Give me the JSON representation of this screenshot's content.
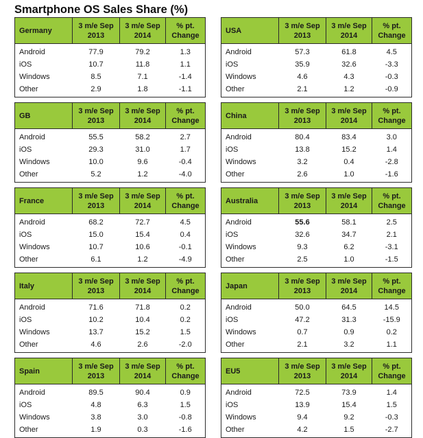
{
  "title": "Smartphone OS Sales Share (%)",
  "headers": {
    "col1": [
      "3 m/e Sep",
      "2013"
    ],
    "col2": [
      "3 m/e Sep",
      "2014"
    ],
    "col3": [
      "% pt.",
      "Change"
    ]
  },
  "tables": [
    {
      "region": "Germany",
      "rows": [
        [
          "Android",
          "77.9",
          "79.2",
          "1.3"
        ],
        [
          "iOS",
          "10.7",
          "11.8",
          "1.1"
        ],
        [
          "Windows",
          "8.5",
          "7.1",
          "-1.4"
        ],
        [
          "Other",
          "2.9",
          "1.8",
          "-1.1"
        ]
      ]
    },
    {
      "region": "USA",
      "rows": [
        [
          "Android",
          "57.3",
          "61.8",
          "4.5"
        ],
        [
          "iOS",
          "35.9",
          "32.6",
          "-3.3"
        ],
        [
          "Windows",
          "4.6",
          "4.3",
          "-0.3"
        ],
        [
          "Other",
          "2.1",
          "1.2",
          "-0.9"
        ]
      ]
    },
    {
      "region": "GB",
      "rows": [
        [
          "Android",
          "55.5",
          "58.2",
          "2.7"
        ],
        [
          "iOS",
          "29.3",
          "31.0",
          "1.7"
        ],
        [
          "Windows",
          "10.0",
          "9.6",
          "-0.4"
        ],
        [
          "Other",
          "5.2",
          "1.2",
          "-4.0"
        ]
      ]
    },
    {
      "region": "China",
      "rows": [
        [
          "Android",
          "80.4",
          "83.4",
          "3.0"
        ],
        [
          "iOS",
          "13.8",
          "15.2",
          "1.4"
        ],
        [
          "Windows",
          "3.2",
          "0.4",
          "-2.8"
        ],
        [
          "Other",
          "2.6",
          "1.0",
          "-1.6"
        ]
      ]
    },
    {
      "region": "France",
      "rows": [
        [
          "Android",
          "68.2",
          "72.7",
          "4.5"
        ],
        [
          "iOS",
          "15.0",
          "15.4",
          "0.4"
        ],
        [
          "Windows",
          "10.7",
          "10.6",
          "-0.1"
        ],
        [
          "Other",
          "6.1",
          "1.2",
          "-4.9"
        ]
      ]
    },
    {
      "region": "Australia",
      "rows": [
        [
          "Android",
          "55.6",
          "58.1",
          "2.5"
        ],
        [
          "iOS",
          "32.6",
          "34.7",
          "2.1"
        ],
        [
          "Windows",
          "9.3",
          "6.2",
          "-3.1"
        ],
        [
          "Other",
          "2.5",
          "1.0",
          "-1.5"
        ]
      ]
    },
    {
      "region": "Italy",
      "rows": [
        [
          "Android",
          "71.6",
          "71.8",
          "0.2"
        ],
        [
          "iOS",
          "10.2",
          "10.4",
          "0.2"
        ],
        [
          "Windows",
          "13.7",
          "15.2",
          "1.5"
        ],
        [
          "Other",
          "4.6",
          "2.6",
          "-2.0"
        ]
      ]
    },
    {
      "region": "Japan",
      "rows": [
        [
          "Android",
          "50.0",
          "64.5",
          "14.5"
        ],
        [
          "iOS",
          "47.2",
          "31.3",
          "-15.9"
        ],
        [
          "Windows",
          "0.7",
          "0.9",
          "0.2"
        ],
        [
          "Other",
          "2.1",
          "3.2",
          "1.1"
        ]
      ]
    },
    {
      "region": "Spain",
      "rows": [
        [
          "Android",
          "89.5",
          "90.4",
          "0.9"
        ],
        [
          "iOS",
          "4.8",
          "6.3",
          "1.5"
        ],
        [
          "Windows",
          "3.8",
          "3.0",
          "-0.8"
        ],
        [
          "Other",
          "1.9",
          "0.3",
          "-1.6"
        ]
      ]
    },
    {
      "region": "EU5",
      "rows": [
        [
          "Android",
          "72.5",
          "73.9",
          "1.4"
        ],
        [
          "iOS",
          "13.9",
          "15.4",
          "1.5"
        ],
        [
          "Windows",
          "9.4",
          "9.2",
          "-0.3"
        ],
        [
          "Other",
          "4.2",
          "1.5",
          "-2.7"
        ]
      ]
    }
  ],
  "colors": {
    "header_green": "#99c93c",
    "border": "#2b2b2b"
  }
}
